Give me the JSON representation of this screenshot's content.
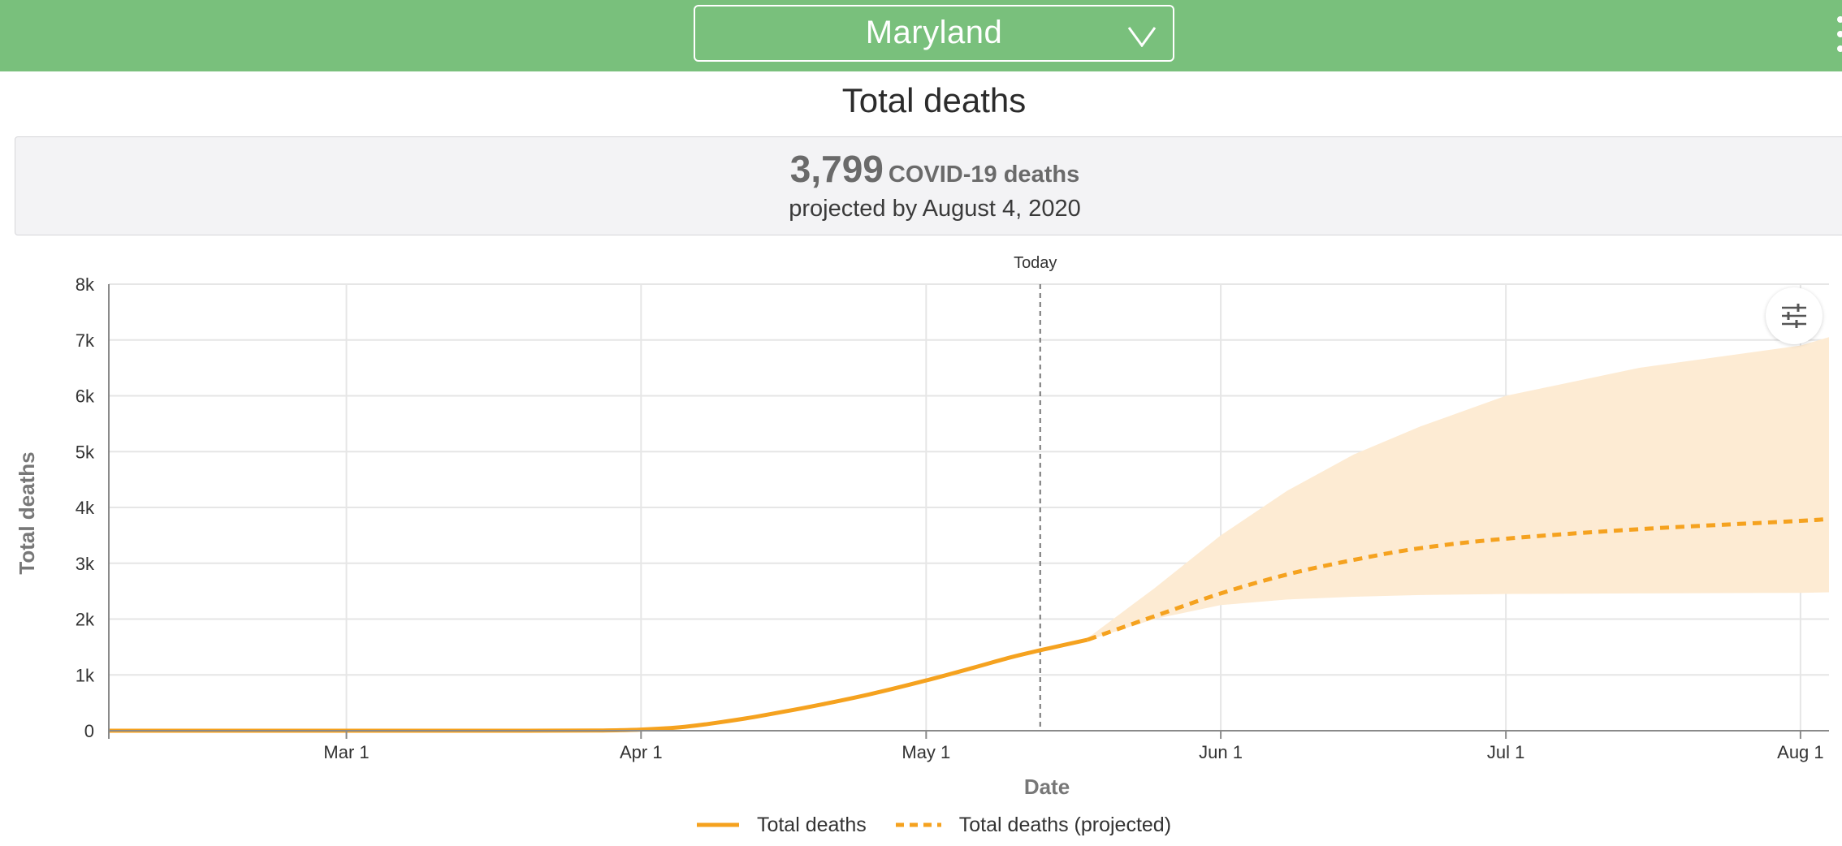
{
  "header": {
    "state_selector": {
      "selected": "Maryland",
      "icon": "chevron-down-icon"
    },
    "menu_icon": "more-vertical-icon"
  },
  "page": {
    "title": "Total deaths"
  },
  "summary": {
    "count": "3,799",
    "count_label": "COVID-19 deaths",
    "projection_note": "projected by August 4, 2020"
  },
  "settings_icon": "sliders-icon",
  "colors": {
    "header_bg": "#79c07c",
    "series": "#f5a21f",
    "band": "#fdebd3"
  },
  "chart_data": {
    "type": "line",
    "xlabel": "Date",
    "ylabel": "Total deaths",
    "x_start": "2020-02-05",
    "x_end": "2020-08-04",
    "xlim": [
      "2020-02-05",
      "2020-08-04"
    ],
    "ylim": [
      0,
      8000
    ],
    "y_ticks": [
      0,
      1000,
      2000,
      3000,
      4000,
      5000,
      6000,
      7000,
      8000
    ],
    "y_tick_labels": [
      "0",
      "1k",
      "2k",
      "3k",
      "4k",
      "5k",
      "6k",
      "7k",
      "8k"
    ],
    "x_ticks": [
      {
        "date": "2020-03-01",
        "label": "Mar 1"
      },
      {
        "date": "2020-04-01",
        "label": "Apr 1"
      },
      {
        "date": "2020-05-01",
        "label": "May 1"
      },
      {
        "date": "2020-06-01",
        "label": "Jun 1"
      },
      {
        "date": "2020-07-01",
        "label": "Jul 1"
      },
      {
        "date": "2020-08-01",
        "label": "Aug 1"
      }
    ],
    "today": {
      "date": "2020-05-13",
      "label": "Today"
    },
    "grid": true,
    "legend_position": "bottom-center",
    "series": [
      {
        "name": "Total deaths",
        "style": "solid",
        "points": [
          [
            "2020-02-05",
            0
          ],
          [
            "2020-03-01",
            0
          ],
          [
            "2020-03-20",
            0
          ],
          [
            "2020-03-28",
            5
          ],
          [
            "2020-04-01",
            20
          ],
          [
            "2020-04-05",
            60
          ],
          [
            "2020-04-08",
            120
          ],
          [
            "2020-04-12",
            220
          ],
          [
            "2020-04-16",
            340
          ],
          [
            "2020-04-20",
            470
          ],
          [
            "2020-04-25",
            650
          ],
          [
            "2020-05-01",
            900
          ],
          [
            "2020-05-06",
            1130
          ],
          [
            "2020-05-10",
            1320
          ],
          [
            "2020-05-14",
            1480
          ],
          [
            "2020-05-18",
            1630
          ]
        ]
      },
      {
        "name": "Total deaths (projected)",
        "style": "dashed",
        "points": [
          [
            "2020-05-18",
            1630
          ],
          [
            "2020-05-25",
            2050
          ],
          [
            "2020-06-01",
            2460
          ],
          [
            "2020-06-08",
            2800
          ],
          [
            "2020-06-15",
            3060
          ],
          [
            "2020-06-22",
            3270
          ],
          [
            "2020-07-01",
            3440
          ],
          [
            "2020-07-15",
            3610
          ],
          [
            "2020-08-01",
            3760
          ],
          [
            "2020-08-04",
            3799
          ]
        ]
      }
    ],
    "uncertainty_band": {
      "upper": [
        [
          "2020-05-18",
          1660
        ],
        [
          "2020-05-25",
          2550
        ],
        [
          "2020-06-01",
          3500
        ],
        [
          "2020-06-08",
          4300
        ],
        [
          "2020-06-15",
          4950
        ],
        [
          "2020-06-22",
          5450
        ],
        [
          "2020-07-01",
          6000
        ],
        [
          "2020-07-15",
          6500
        ],
        [
          "2020-08-01",
          6900
        ],
        [
          "2020-08-04",
          7050
        ]
      ],
      "lower": [
        [
          "2020-05-18",
          1620
        ],
        [
          "2020-05-25",
          2000
        ],
        [
          "2020-06-01",
          2250
        ],
        [
          "2020-06-08",
          2350
        ],
        [
          "2020-06-15",
          2400
        ],
        [
          "2020-06-22",
          2430
        ],
        [
          "2020-07-01",
          2450
        ],
        [
          "2020-07-15",
          2460
        ],
        [
          "2020-08-01",
          2470
        ],
        [
          "2020-08-04",
          2480
        ]
      ]
    }
  }
}
